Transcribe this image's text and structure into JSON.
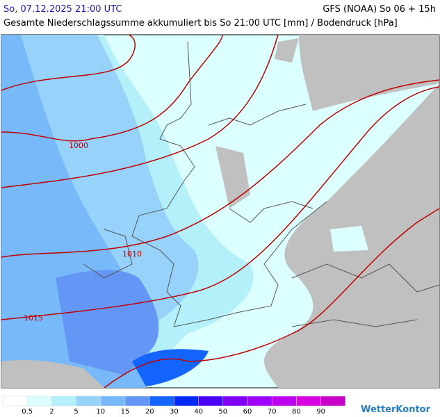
{
  "header": {
    "date": "So, 07.12.2025 21:00 UTC",
    "model": "GFS (NOAA) So 06 + 15h",
    "subtitle": "Gesamte Niederschlagssumme akkumuliert bis So 21:00 UTC [mm] / Bodendruck [hPa]"
  },
  "isobars": [
    {
      "label": "1000"
    },
    {
      "label": "1010"
    },
    {
      "label": "1015"
    }
  ],
  "legend": {
    "colors": [
      "#ffffff",
      "#dcffff",
      "#b4f0fa",
      "#96d2fa",
      "#78b9fa",
      "#6496f5",
      "#1464ff",
      "#0028ff",
      "#4b00ff",
      "#8000ff",
      "#a000ff",
      "#c000f0",
      "#d800e0",
      "#c800c8"
    ],
    "labels": [
      0.5,
      2,
      5,
      10,
      15,
      20,
      30,
      40,
      50,
      60,
      70,
      80,
      90
    ]
  },
  "logo": "WetterKontor"
}
